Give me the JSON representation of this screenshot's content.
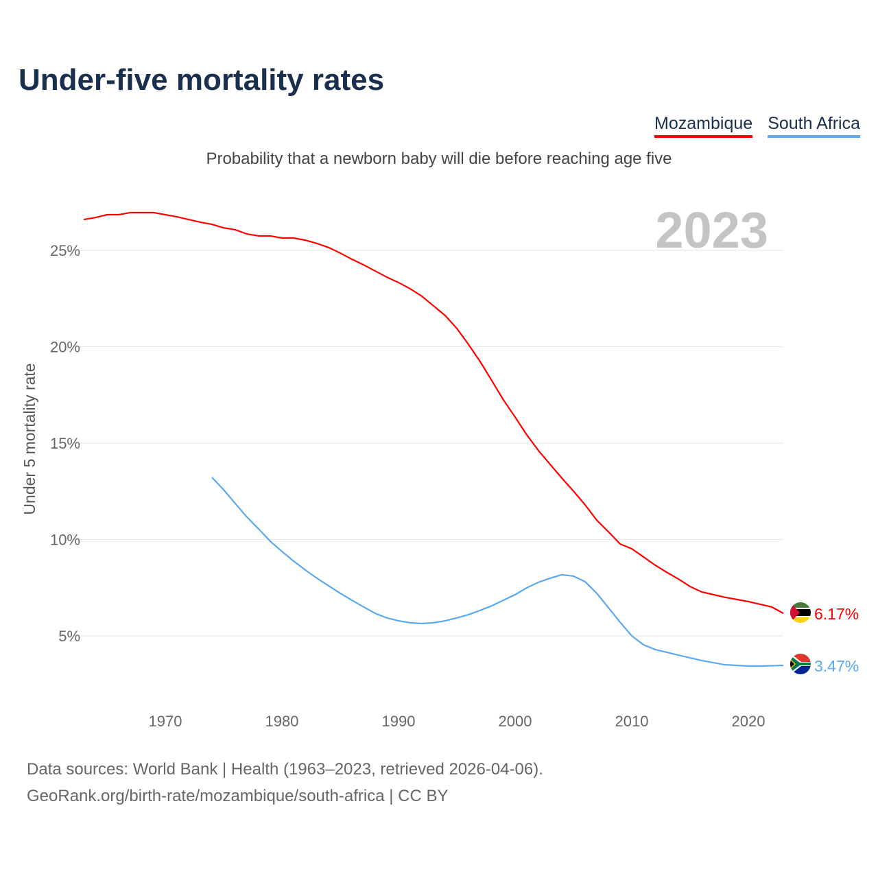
{
  "title": "Under-five mortality rates",
  "subtitle": "Probability that a newborn baby will die before reaching age five",
  "year_watermark": "2023",
  "footer": {
    "line1": "Data sources: World Bank | Health (1963–2023, retrieved 2026-04-06).",
    "line2": "GeoRank.org/birth-rate/mozambique/south-africa | CC BY"
  },
  "chart_data": {
    "type": "line",
    "ylabel": "Under 5 mortality rate",
    "xlabel": "",
    "xlim": [
      1963,
      2023
    ],
    "ylim": [
      0,
      27.5
    ],
    "xticks": [
      1970,
      1980,
      1990,
      2000,
      2010,
      2020
    ],
    "yticks": [
      5,
      10,
      15,
      20,
      25
    ],
    "ytick_labels": [
      "5%",
      "10%",
      "15%",
      "20%",
      "25%"
    ],
    "grid": true,
    "legend_position": "top-right",
    "series": [
      {
        "name": "Mozambique",
        "color": "#ff0000",
        "end_label": "6.17%",
        "start_year": 1963,
        "values": [
          26.6,
          26.7,
          26.85,
          26.85,
          26.96,
          26.96,
          26.96,
          26.85,
          26.74,
          26.6,
          26.46,
          26.35,
          26.17,
          26.07,
          25.85,
          25.75,
          25.75,
          25.64,
          25.64,
          25.53,
          25.36,
          25.15,
          24.86,
          24.54,
          24.25,
          23.93,
          23.61,
          23.33,
          23.01,
          22.62,
          22.12,
          21.62,
          20.95,
          20.12,
          19.23,
          18.24,
          17.24,
          16.35,
          15.43,
          14.61,
          13.9,
          13.19,
          12.51,
          11.8,
          11.0,
          10.4,
          9.77,
          9.52,
          9.1,
          8.67,
          8.3,
          7.95,
          7.56,
          7.28,
          7.14,
          7.0,
          6.89,
          6.78,
          6.64,
          6.5,
          6.17
        ]
      },
      {
        "name": "South Africa",
        "color": "#5aa9ee",
        "end_label": "3.47%",
        "start_year": 1974,
        "values": [
          13.22,
          12.58,
          11.87,
          11.16,
          10.55,
          9.91,
          9.38,
          8.88,
          8.42,
          7.99,
          7.6,
          7.21,
          6.85,
          6.5,
          6.17,
          5.93,
          5.78,
          5.68,
          5.64,
          5.68,
          5.78,
          5.93,
          6.1,
          6.32,
          6.56,
          6.85,
          7.14,
          7.49,
          7.78,
          7.99,
          8.17,
          8.1,
          7.81,
          7.21,
          6.46,
          5.71,
          5.0,
          4.54,
          4.29,
          4.15,
          4.0,
          3.86,
          3.72,
          3.61,
          3.5,
          3.47,
          3.43,
          3.43,
          3.45,
          3.47
        ]
      }
    ]
  }
}
